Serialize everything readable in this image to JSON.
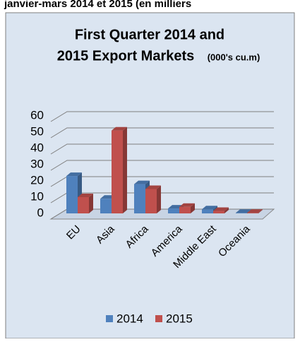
{
  "header": "janvier-mars 2014 et 2015 (en milliers",
  "chart_data": {
    "type": "bar3d",
    "title_lines": [
      "First Quarter 2014 and",
      "2015 Export Markets"
    ],
    "units": "(000's cu.m)",
    "categories": [
      "EU",
      "Asia",
      "Africa",
      "America",
      "Middle East",
      "Oceania"
    ],
    "series": [
      {
        "name": "2014",
        "color": "#4f81bd",
        "values": [
          23,
          9,
          18,
          3,
          2.5,
          0.3
        ]
      },
      {
        "name": "2015",
        "color": "#c0504d",
        "values": [
          10,
          51,
          15,
          4,
          1.5,
          0.3
        ]
      }
    ],
    "ylim": [
      0,
      60
    ],
    "yticks": [
      0,
      10,
      20,
      30,
      40,
      50,
      60
    ],
    "grid": true,
    "legend": "bottom"
  }
}
